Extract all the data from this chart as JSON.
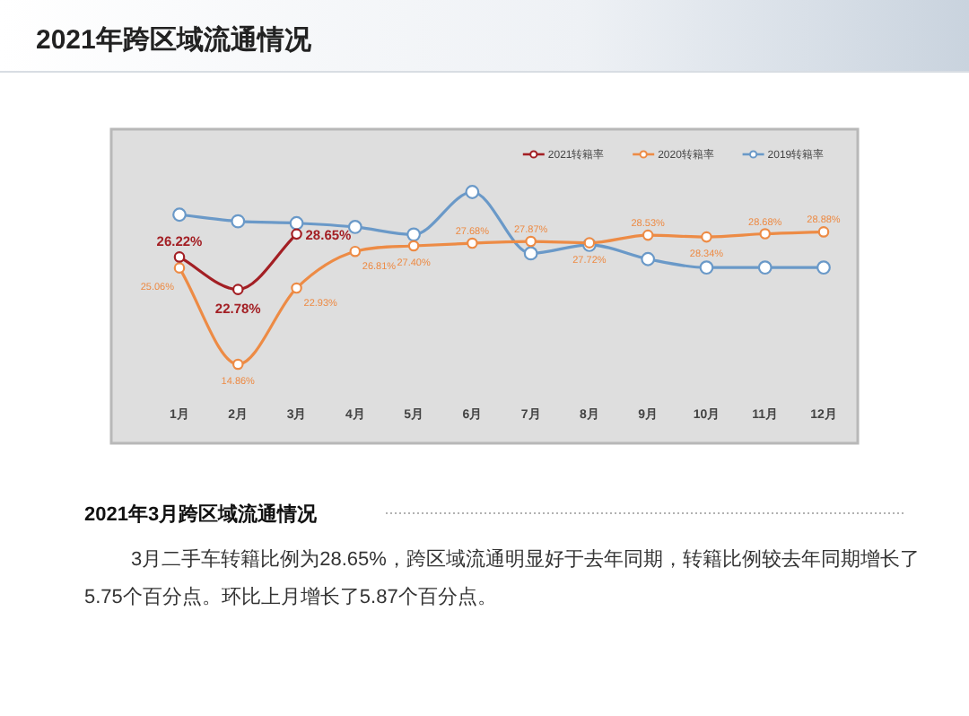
{
  "chart_data": {
    "type": "line",
    "title": "2021年跨区域流通情况",
    "categories": [
      "1月",
      "2月",
      "3月",
      "4月",
      "5月",
      "6月",
      "7月",
      "8月",
      "9月",
      "10月",
      "11月",
      "12月"
    ],
    "series": [
      {
        "name": "2021转籍率",
        "color": "#a31f24",
        "values": [
          26.22,
          22.78,
          28.65,
          null,
          null,
          null,
          null,
          null,
          null,
          null,
          null,
          null
        ],
        "value_labels": [
          "26.22%",
          "22.78%",
          "28.65%",
          null,
          null,
          null,
          null,
          null,
          null,
          null,
          null,
          null
        ]
      },
      {
        "name": "2020转籍率",
        "color": "#ed8b45",
        "values": [
          25.06,
          14.86,
          22.93,
          26.81,
          27.4,
          27.68,
          27.87,
          27.72,
          28.53,
          28.34,
          28.68,
          28.88
        ],
        "value_labels": [
          "25.06%",
          "14.86%",
          "22.93%",
          "26.81%",
          "27.40%",
          "27.68%",
          "27.87%",
          "27.72%",
          "28.53%",
          "28.34%",
          "28.68%",
          "28.88%"
        ]
      },
      {
        "name": "2019转籍率",
        "color": "#6a99c8",
        "values": [
          30.7,
          30.0,
          29.8,
          29.4,
          28.6,
          33.1,
          26.6,
          27.5,
          26.0,
          25.1,
          25.1,
          25.1
        ]
      }
    ],
    "legend": "top right",
    "marker": "circle",
    "grid": false,
    "annotations": [
      "2021年3月跨区域流通情况",
      "3月二手车转籍比例为28.65%，跨区域流通明显好于去年同期，转籍比例较去年同期增长了5.75个百分点。环比上月增长了5.87个百分点。"
    ]
  }
}
